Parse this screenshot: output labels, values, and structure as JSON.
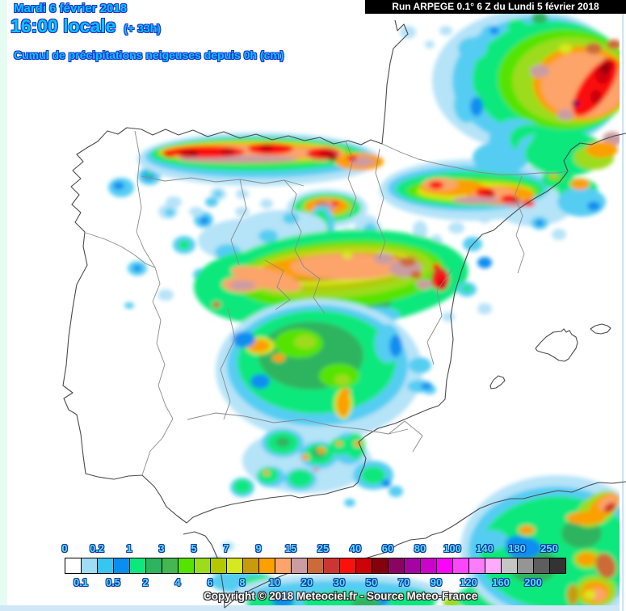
{
  "header": {
    "date": "Mardi 6 février 2018",
    "time": "16:00 locale",
    "offset": "(+ 33h)",
    "subtitle": "Cumul de précipitations neigeuses depuis 0h (cm)",
    "text_color": "#00c8f8",
    "outline_color": "#2431d0"
  },
  "run_bar": {
    "text": "Run ARPEGE 0.1° 6 Z du Lundi 5 février 2018",
    "background": "#000000",
    "text_color": "#ffffff"
  },
  "map": {
    "copyright": "Copyright © 2018 Meteociel.fr - Source Meteo-France",
    "sea_color": "#ffffff",
    "coast_color": "#4a4a4a",
    "border_color": "#8a8a8a",
    "domain_edge_left_color": "#e6fbf2",
    "domain_edge_bottom_color": "#cfe7f7"
  },
  "legend": {
    "unit": "cm",
    "top_labels": [
      "0",
      "0.2",
      "1",
      "3",
      "5",
      "7",
      "9",
      "15",
      "25",
      "40",
      "60",
      "80",
      "100",
      "140",
      "180",
      "250"
    ],
    "bottom_labels": [
      "0.1",
      "0.5",
      "2",
      "4",
      "6",
      "8",
      "10",
      "20",
      "30",
      "50",
      "70",
      "90",
      "120",
      "160",
      "200"
    ],
    "cell_colors": [
      "#ffffff",
      "#a0dcf4",
      "#38c5f0",
      "#0a8ef0",
      "#0de87d",
      "#2eb45e",
      "#44b751",
      "#55e400",
      "#9cdc1c",
      "#b4c800",
      "#d6e81f",
      "#c89b0e",
      "#fc9f00",
      "#fca46a",
      "#cb9ca2",
      "#cc6b39",
      "#cd3532",
      "#fc100b",
      "#cc0407",
      "#85010c",
      "#8c0461",
      "#a503a2",
      "#ca04c8",
      "#fb04fa",
      "#fc46fb",
      "#fc7dfc",
      "#fcacfc",
      "#c5c5c5",
      "#959595",
      "#5e5e5e",
      "#333333"
    ],
    "label_color": "#49e7f9",
    "label_outline_color": "#1b2f9e"
  }
}
